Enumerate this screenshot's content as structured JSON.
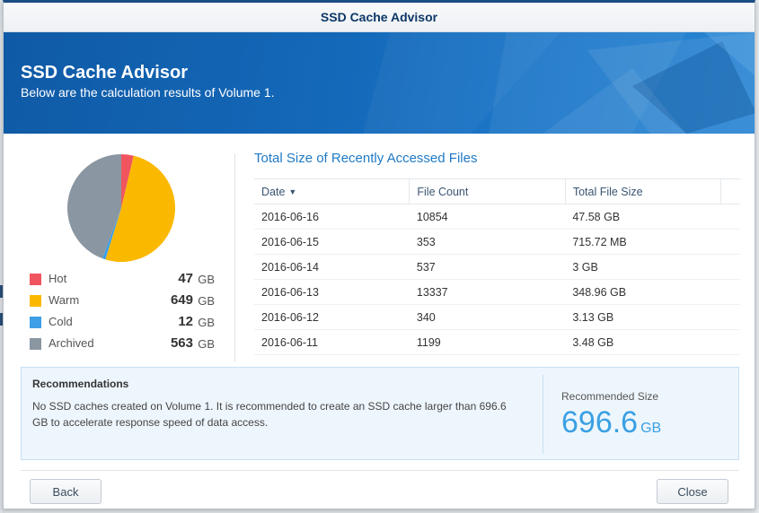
{
  "window": {
    "title": "SSD Cache Advisor"
  },
  "banner": {
    "heading": "SSD Cache Advisor",
    "subtitle": "Below are the calculation results of Volume 1."
  },
  "legend": [
    {
      "name": "Hot",
      "value": "47",
      "unit": "GB",
      "color": "#f0555f"
    },
    {
      "name": "Warm",
      "value": "649",
      "unit": "GB",
      "color": "#fbb800"
    },
    {
      "name": "Cold",
      "value": "12",
      "unit": "GB",
      "color": "#3d9fe6"
    },
    {
      "name": "Archived",
      "value": "563",
      "unit": "GB",
      "color": "#8a96a1"
    }
  ],
  "table": {
    "title": "Total Size of Recently Accessed Files",
    "headers": {
      "date": "Date",
      "file_count": "File Count",
      "total_size": "Total File Size"
    },
    "rows": [
      {
        "date": "2016-06-16",
        "count": "10854",
        "size": "47.58 GB"
      },
      {
        "date": "2016-06-15",
        "count": "353",
        "size": "715.72 MB"
      },
      {
        "date": "2016-06-14",
        "count": "537",
        "size": "3 GB"
      },
      {
        "date": "2016-06-13",
        "count": "13337",
        "size": "348.96 GB"
      },
      {
        "date": "2016-06-12",
        "count": "340",
        "size": "3.13 GB"
      },
      {
        "date": "2016-06-11",
        "count": "1199",
        "size": "3.48 GB"
      }
    ]
  },
  "recommendations": {
    "title": "Recommendations",
    "text": "No SSD caches created on Volume 1. It is recommended to create an SSD cache larger than 696.6 GB to accelerate response speed of data access.",
    "size_label": "Recommended Size",
    "size_value": "696.6",
    "size_unit": "GB"
  },
  "buttons": {
    "back": "Back",
    "close": "Close"
  },
  "icons": {
    "sort": "sort-descending-icon"
  }
}
